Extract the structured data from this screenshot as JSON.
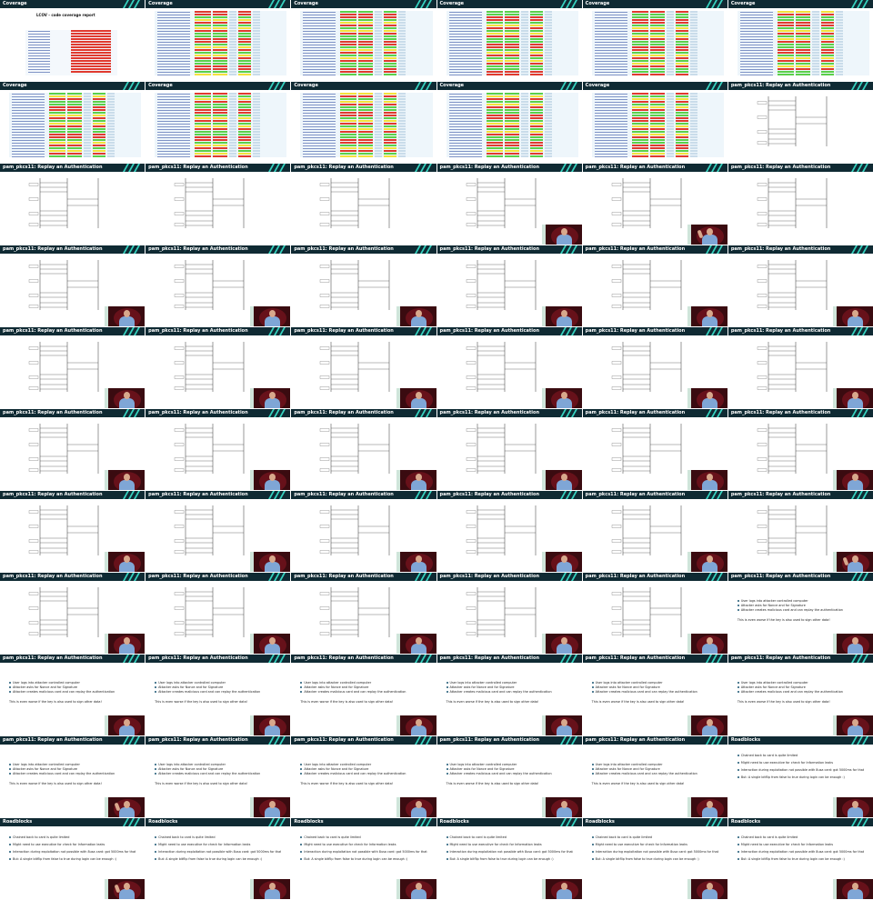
{
  "frames": [
    {
      "title": "Coverage",
      "kind": "report"
    },
    {
      "title": "Coverage",
      "kind": "coverage"
    },
    {
      "title": "Coverage",
      "kind": "coverage"
    },
    {
      "title": "Coverage",
      "kind": "coverage"
    },
    {
      "title": "Coverage",
      "kind": "coverage"
    },
    {
      "title": "Coverage",
      "kind": "coverage"
    },
    {
      "title": "Coverage",
      "kind": "coverage"
    },
    {
      "title": "Coverage",
      "kind": "coverage"
    },
    {
      "title": "Coverage",
      "kind": "coverage"
    },
    {
      "title": "Coverage",
      "kind": "coverage"
    },
    {
      "title": "Coverage",
      "kind": "coverage"
    },
    {
      "title": "pam_pkcs11: Replay an Authentication",
      "kind": "sequence"
    },
    {
      "title": "pam_pkcs11: Replay an Authentication",
      "kind": "sequence"
    },
    {
      "title": "pam_pkcs11: Replay an Authentication",
      "kind": "sequence"
    },
    {
      "title": "pam_pkcs11: Replay an Authentication",
      "kind": "sequence"
    },
    {
      "title": "pam_pkcs11: Replay an Authentication",
      "kind": "sequence",
      "speaker": true
    },
    {
      "title": "pam_pkcs11: Replay an Authentication",
      "kind": "sequence",
      "speaker": true,
      "pose": "arm"
    },
    {
      "title": "pam_pkcs11: Replay an Authentication",
      "kind": "sequence"
    },
    {
      "title": "pam_pkcs11: Replay an Authentication",
      "kind": "sequence",
      "speaker": true
    },
    {
      "title": "pam_pkcs11: Replay an Authentication",
      "kind": "sequence",
      "speaker": true
    },
    {
      "title": "pam_pkcs11: Replay an Authentication",
      "kind": "sequence",
      "speaker": true
    },
    {
      "title": "pam_pkcs11: Replay an Authentication",
      "kind": "sequence",
      "speaker": true
    },
    {
      "title": "pam_pkcs11: Replay an Authentication",
      "kind": "sequence",
      "speaker": true
    },
    {
      "title": "pam_pkcs11: Replay an Authentication",
      "kind": "sequence",
      "speaker": true
    },
    {
      "title": "pam_pkcs11: Replay an Authentication",
      "kind": "sequence",
      "speaker": true
    },
    {
      "title": "pam_pkcs11: Replay an Authentication",
      "kind": "sequence",
      "speaker": true
    },
    {
      "title": "pam_pkcs11: Replay an Authentication",
      "kind": "sequence",
      "speaker": true
    },
    {
      "title": "pam_pkcs11: Replay an Authentication",
      "kind": "sequence",
      "speaker": true
    },
    {
      "title": "pam_pkcs11: Replay an Authentication",
      "kind": "sequence",
      "speaker": true
    },
    {
      "title": "pam_pkcs11: Replay an Authentication",
      "kind": "sequence",
      "speaker": true
    },
    {
      "title": "pam_pkcs11: Replay an Authentication",
      "kind": "sequence",
      "speaker": true
    },
    {
      "title": "pam_pkcs11: Replay an Authentication",
      "kind": "sequence",
      "speaker": true
    },
    {
      "title": "pam_pkcs11: Replay an Authentication",
      "kind": "sequence",
      "speaker": true
    },
    {
      "title": "pam_pkcs11: Replay an Authentication",
      "kind": "sequence",
      "speaker": true
    },
    {
      "title": "pam_pkcs11: Replay an Authentication",
      "kind": "sequence",
      "speaker": true
    },
    {
      "title": "pam_pkcs11: Replay an Authentication",
      "kind": "sequence",
      "speaker": true
    },
    {
      "title": "pam_pkcs11: Replay an Authentication",
      "kind": "sequence",
      "speaker": true
    },
    {
      "title": "pam_pkcs11: Replay an Authentication",
      "kind": "sequence",
      "speaker": true
    },
    {
      "title": "pam_pkcs11: Replay an Authentication",
      "kind": "sequence",
      "speaker": true
    },
    {
      "title": "pam_pkcs11: Replay an Authentication",
      "kind": "sequence",
      "speaker": true
    },
    {
      "title": "pam_pkcs11: Replay an Authentication",
      "kind": "sequence",
      "speaker": true
    },
    {
      "title": "pam_pkcs11: Replay an Authentication",
      "kind": "sequence",
      "speaker": true,
      "pose": "arm"
    },
    {
      "title": "pam_pkcs11: Replay an Authentication",
      "kind": "sequence",
      "speaker": true
    },
    {
      "title": "pam_pkcs11: Replay an Authentication",
      "kind": "sequence",
      "speaker": true
    },
    {
      "title": "pam_pkcs11: Replay an Authentication",
      "kind": "sequence",
      "speaker": true
    },
    {
      "title": "pam_pkcs11: Replay an Authentication",
      "kind": "sequence",
      "speaker": true
    },
    {
      "title": "pam_pkcs11: Replay an Authentication",
      "kind": "sequence",
      "speaker": true
    },
    {
      "title": "pam_pkcs11: Replay an Authentication",
      "kind": "replay-text",
      "speaker": true
    },
    {
      "title": "pam_pkcs11: Replay an Authentication",
      "kind": "replay-text",
      "speaker": true
    },
    {
      "title": "pam_pkcs11: Replay an Authentication",
      "kind": "replay-text",
      "speaker": true
    },
    {
      "title": "pam_pkcs11: Replay an Authentication",
      "kind": "replay-text",
      "speaker": true
    },
    {
      "title": "pam_pkcs11: Replay an Authentication",
      "kind": "replay-text",
      "speaker": true
    },
    {
      "title": "pam_pkcs11: Replay an Authentication",
      "kind": "replay-text",
      "speaker": true
    },
    {
      "title": "pam_pkcs11: Replay an Authentication",
      "kind": "replay-text",
      "speaker": true
    },
    {
      "title": "pam_pkcs11: Replay an Authentication",
      "kind": "replay-text",
      "speaker": true,
      "pose": "arm"
    },
    {
      "title": "pam_pkcs11: Replay an Authentication",
      "kind": "replay-text",
      "speaker": true
    },
    {
      "title": "pam_pkcs11: Replay an Authentication",
      "kind": "replay-text",
      "speaker": true
    },
    {
      "title": "pam_pkcs11: Replay an Authentication",
      "kind": "replay-text",
      "speaker": true
    },
    {
      "title": "pam_pkcs11: Replay an Authentication",
      "kind": "replay-text",
      "speaker": true
    },
    {
      "title": "Roadblocks",
      "kind": "roadblocks",
      "speaker": true
    },
    {
      "title": "Roadblocks",
      "kind": "roadblocks",
      "speaker": true,
      "pose": "arm"
    },
    {
      "title": "Roadblocks",
      "kind": "roadblocks",
      "speaker": true
    },
    {
      "title": "Roadblocks",
      "kind": "roadblocks",
      "speaker": true
    },
    {
      "title": "Roadblocks",
      "kind": "roadblocks",
      "speaker": true
    },
    {
      "title": "Roadblocks",
      "kind": "roadblocks",
      "speaker": true
    },
    {
      "title": "Roadblocks",
      "kind": "roadblocks",
      "speaker": true
    },
    {
      "title": "Roadblocks",
      "kind": "roadblocks",
      "speaker": true
    },
    {
      "title": "Roadblocks",
      "kind": "roadblocks",
      "speaker": true
    },
    {
      "title": "Roadblocks",
      "kind": "roadblocks",
      "speaker": true
    },
    {
      "title": "Roadblocks",
      "kind": "roadblocks",
      "speaker": true
    },
    {
      "title": "Roadblocks",
      "kind": "roadblocks",
      "speaker": true
    },
    {
      "title": "Roadblocks",
      "kind": "roadblocks",
      "speaker": true
    }
  ],
  "report_title": "LCOV - code coverage report",
  "replay_bullets": [
    "User logs into attacker controlled computer",
    "Attacker asks for Nonce and for Signature",
    "Attacker creates malicious card and can replay the authentication"
  ],
  "replay_note": "This is even worse if the key is also used to sign other data!",
  "roadblock_bullets": [
    "Chained back to card is quite limited",
    "Might need to use executive for check for Information leaks",
    "Interaction during exploitation not possible with 8usa card: got 5000ms for that",
    "But: A single bitflip from false to true during login can be enough :)"
  ],
  "colors": {
    "header_bg": "#0f2a33",
    "accent": "#37d3c0",
    "coverage_red": "#e03a2f",
    "coverage_yellow": "#f3e23c",
    "coverage_green": "#5ad04a"
  }
}
